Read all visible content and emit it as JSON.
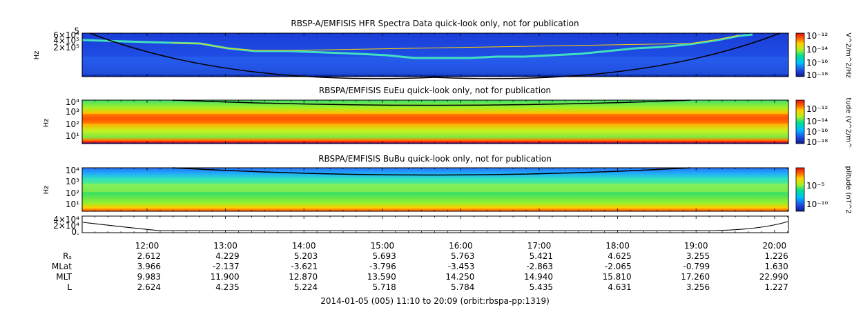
{
  "footer_text": "2014-01-05 (005) 11:10 to 20:09 (orbit:rbspa-pp:1319)",
  "x_tick_labels": [
    "12:00",
    "13:00",
    "14:00",
    "15:00",
    "16:00",
    "17:00",
    "18:00",
    "19:00",
    "20:00"
  ],
  "chart_data": [
    {
      "type": "heatmap",
      "title": "RBSP-A/EMFISIS  HFR Spectra Data quick-look only, not for publication",
      "ylabel": "Hz",
      "y_scale": "log",
      "y_tick_labels": [
        "5",
        "6×10⁵",
        "4×10⁵",
        "2×10⁵"
      ],
      "colorbar": {
        "label": "V^2/m^2/Hz",
        "tick_labels": [
          "10⁻¹²",
          "10⁻¹⁴",
          "10⁻¹⁶",
          "10⁻¹⁸"
        ]
      },
      "colors": [
        "#0a1a8c",
        "#1f4fe6",
        "#00c0ff",
        "#00e090",
        "#b0f020",
        "#ffd000",
        "#ff6000",
        "#e01010"
      ]
    },
    {
      "type": "heatmap",
      "title": "RBSPA/EMFISIS  EuEu quick-look only, not for publication",
      "ylabel": "Hz",
      "y_scale": "log",
      "y_tick_labels": [
        "10⁴",
        "10³",
        "10²",
        "10¹"
      ],
      "colorbar": {
        "label": "tude (V^2/m^",
        "tick_labels": [
          "10⁻¹²",
          "10⁻¹⁴",
          "10⁻¹⁶",
          "10⁻¹⁸"
        ]
      },
      "colors": [
        "#0a1a8c",
        "#1f4fe6",
        "#00c0ff",
        "#00e090",
        "#b0f020",
        "#ffd000",
        "#ff6000",
        "#e01010"
      ]
    },
    {
      "type": "heatmap",
      "title": "RBSPA/EMFISIS  BuBu quick-look only, not for publication",
      "ylabel": "Hz",
      "y_scale": "log",
      "y_tick_labels": [
        "10⁴",
        "10³",
        "10²",
        "10¹"
      ],
      "colorbar": {
        "label": "plitude (nT^2",
        "tick_labels": [
          "10⁻⁵",
          "10⁻¹⁰"
        ]
      },
      "colors": [
        "#0a1a8c",
        "#1f4fe6",
        "#00c0ff",
        "#00e090",
        "#b0f020",
        "#ffd000",
        "#ff6000",
        "#e01010"
      ]
    },
    {
      "type": "line",
      "title": "",
      "y_tick_labels": [
        "4×10⁴",
        "2×10⁴",
        "0."
      ],
      "line_color": "#000000"
    }
  ],
  "ephemeris": {
    "row_labels": [
      "Rₛ",
      "MLat",
      "MLT",
      "L"
    ],
    "rows": [
      [
        "2.612",
        "4.229",
        "5.203",
        "5.693",
        "5.763",
        "5.421",
        "4.625",
        "3.255",
        "1.226"
      ],
      [
        "3.966",
        "-2.137",
        "-3.621",
        "-3.796",
        "-3.453",
        "-2.863",
        "-2.065",
        "-0.799",
        "1.630"
      ],
      [
        "9.983",
        "11.900",
        "12.870",
        "13.590",
        "14.250",
        "14.940",
        "15.810",
        "17.260",
        "22.990"
      ],
      [
        "2.624",
        "4.235",
        "5.224",
        "5.718",
        "5.784",
        "5.435",
        "4.631",
        "3.256",
        "1.227"
      ]
    ]
  }
}
